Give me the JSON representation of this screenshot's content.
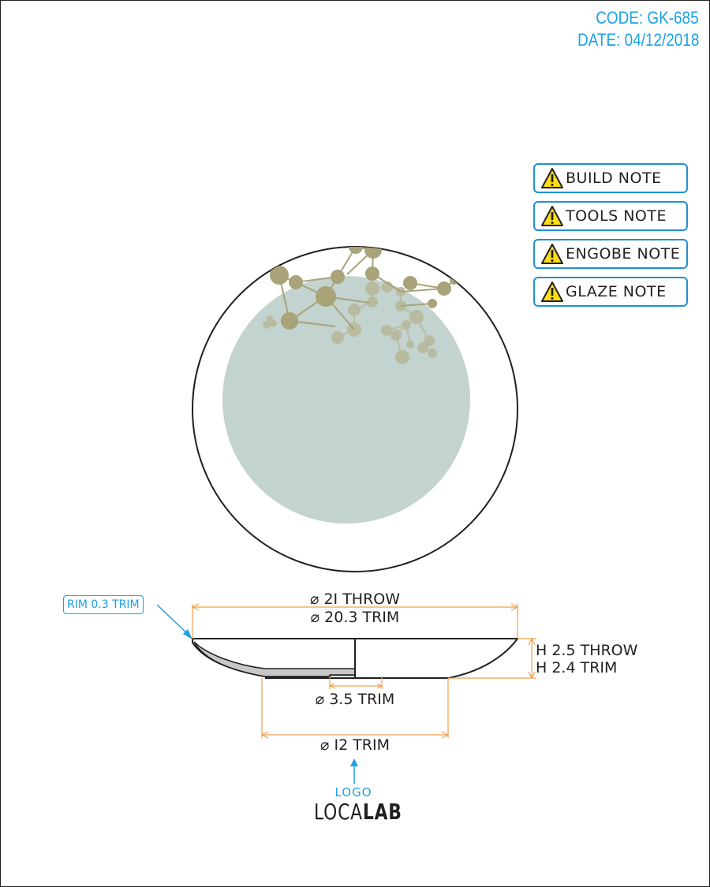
{
  "header": {
    "code": "CODE: GK-685",
    "date": "DATE: 04/12/2018"
  },
  "notes": [
    {
      "label": "BUILD NOTE",
      "icon": "warning-icon"
    },
    {
      "label": "TOOLS NOTE",
      "icon": "warning-icon"
    },
    {
      "label": "ENGOBE NOTE",
      "icon": "warning-icon"
    },
    {
      "label": "GLAZE NOTE",
      "icon": "warning-icon"
    }
  ],
  "dimensions": {
    "throw_diameter": "⌀ 2I THROW",
    "trim_diameter": "⌀ 20.3 TRIM",
    "throw_height": "H 2.5 THROW",
    "trim_height": "H 2.4 TRIM",
    "foot_inner": "⌀ 3.5 TRIM",
    "foot_outer": "⌀ I2 TRIM",
    "rim": "RIM 0.3 TRIM"
  },
  "logo": {
    "caption": "LOGO",
    "brand_light": "LOCA",
    "brand_bold": "LAB"
  },
  "colors": {
    "accent_blue": "#1ba1e2",
    "dimension_orange": "#f0a04b",
    "glaze_fill": "#c3d3cf",
    "decoration": "#a9a37a",
    "outline": "#231f20",
    "warning_yellow": "#ffde17"
  }
}
